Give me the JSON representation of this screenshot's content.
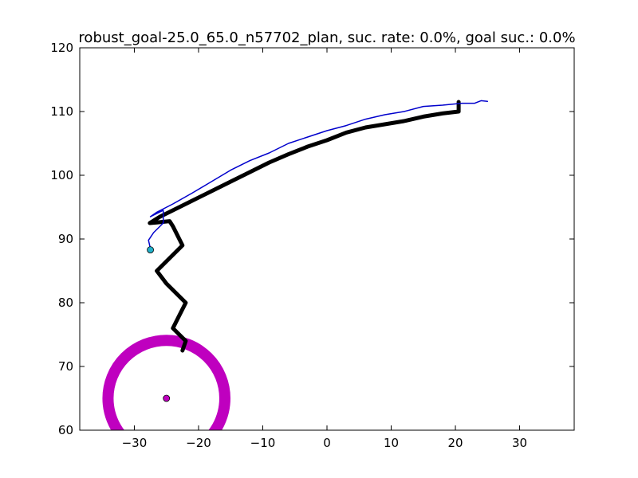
{
  "chart_data": {
    "type": "line",
    "title": "robust_goal-25.0_65.0_n57702_plan, suc. rate: 0.0%, goal suc.: 0.0%",
    "xlim": [
      -38.5,
      38.5
    ],
    "ylim": [
      60,
      120
    ],
    "x_ticks": [
      -30,
      -20,
      -10,
      0,
      10,
      20,
      30
    ],
    "y_ticks": [
      60,
      70,
      80,
      90,
      100,
      110,
      120
    ],
    "x_tick_labels": [
      "−30",
      "−20",
      "−10",
      "0",
      "10",
      "20",
      "30"
    ],
    "y_tick_labels": [
      "60",
      "70",
      "80",
      "90",
      "100",
      "110",
      "120"
    ],
    "grid": false,
    "series": [
      {
        "color": "#000000",
        "style": "thick-line",
        "points": [
          [
            -22.5,
            72.5
          ],
          [
            -22.0,
            74.0
          ],
          [
            -23.5,
            75.5
          ],
          [
            -24.0,
            76.0
          ],
          [
            -23.0,
            78.0
          ],
          [
            -22.0,
            80.0
          ],
          [
            -25.0,
            83.0
          ],
          [
            -26.5,
            85.0
          ],
          [
            -24.5,
            87.0
          ],
          [
            -22.5,
            89.0
          ],
          [
            -24.0,
            92.0
          ],
          [
            -24.5,
            92.8
          ],
          [
            -26.5,
            92.6
          ],
          [
            -27.6,
            92.5
          ],
          [
            -26.0,
            93.5
          ],
          [
            -24.0,
            94.5
          ],
          [
            -21.0,
            96.0
          ],
          [
            -18.0,
            97.5
          ],
          [
            -15.0,
            99.0
          ],
          [
            -12.0,
            100.5
          ],
          [
            -9.0,
            102.0
          ],
          [
            -6.0,
            103.3
          ],
          [
            -3.0,
            104.5
          ],
          [
            0.0,
            105.5
          ],
          [
            3.0,
            106.7
          ],
          [
            6.0,
            107.5
          ],
          [
            9.0,
            108.0
          ],
          [
            12.0,
            108.5
          ],
          [
            15.0,
            109.2
          ],
          [
            18.0,
            109.7
          ],
          [
            20.5,
            110.0
          ],
          [
            20.5,
            111.5
          ]
        ]
      },
      {
        "color": "#0000cc",
        "style": "thin-line",
        "points": [
          [
            -27.5,
            88.5
          ],
          [
            -27.8,
            89.8
          ],
          [
            -27.0,
            91.0
          ],
          [
            -25.5,
            92.5
          ],
          [
            -25.5,
            94.5
          ],
          [
            -27.5,
            93.5
          ],
          [
            -26.5,
            94.2
          ],
          [
            -24.0,
            95.5
          ],
          [
            -21.0,
            97.2
          ],
          [
            -18.0,
            99.0
          ],
          [
            -15.0,
            100.8
          ],
          [
            -12.0,
            102.3
          ],
          [
            -9.0,
            103.5
          ],
          [
            -6.0,
            105.0
          ],
          [
            -3.0,
            106.0
          ],
          [
            0.0,
            107.0
          ],
          [
            3.0,
            107.8
          ],
          [
            6.0,
            108.8
          ],
          [
            9.0,
            109.5
          ],
          [
            12.0,
            110.0
          ],
          [
            15.0,
            110.8
          ],
          [
            18.0,
            111.0
          ],
          [
            21.0,
            111.3
          ],
          [
            23.0,
            111.3
          ],
          [
            24.0,
            111.7
          ],
          [
            25.0,
            111.6
          ]
        ]
      }
    ],
    "markers": [
      {
        "x": -27.5,
        "y": 88.3,
        "color": "#22b0c8",
        "shape": "circle"
      },
      {
        "x": -25.0,
        "y": 65.0,
        "color": "#bf00bf",
        "shape": "circle"
      }
    ],
    "goal_circle": {
      "center": [
        -25.0,
        65.0
      ],
      "radius": 9.1,
      "color": "#bf00bf"
    }
  }
}
